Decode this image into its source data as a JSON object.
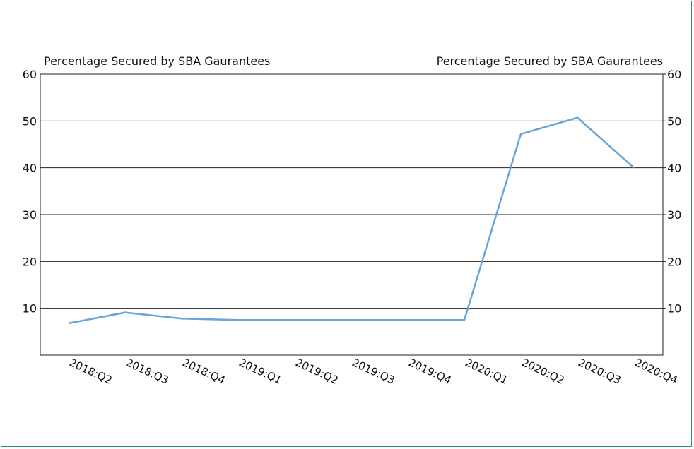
{
  "chart_data": {
    "type": "line",
    "left_axis_label": "Percentage Secured by SBA Gaurantees",
    "right_axis_label": "Percentage Secured by SBA Gaurantees",
    "categories": [
      "2018:Q2",
      "2018:Q3",
      "2018:Q4",
      "2019:Q1",
      "2019:Q2",
      "2019:Q3",
      "2019:Q4",
      "2020:Q1",
      "2020:Q2",
      "2020:Q3",
      "2020:Q4"
    ],
    "series": [
      {
        "values": [
          6.8,
          9.1,
          7.8,
          7.5,
          7.5,
          7.5,
          7.5,
          7.5,
          47.2,
          50.7,
          40.0
        ]
      }
    ],
    "ylim": [
      0,
      60
    ],
    "yticks": [
      10,
      20,
      30,
      40,
      50,
      60
    ],
    "grid": true,
    "line_color": "#6aa3d6",
    "frame_color": "#2e8b7a"
  }
}
